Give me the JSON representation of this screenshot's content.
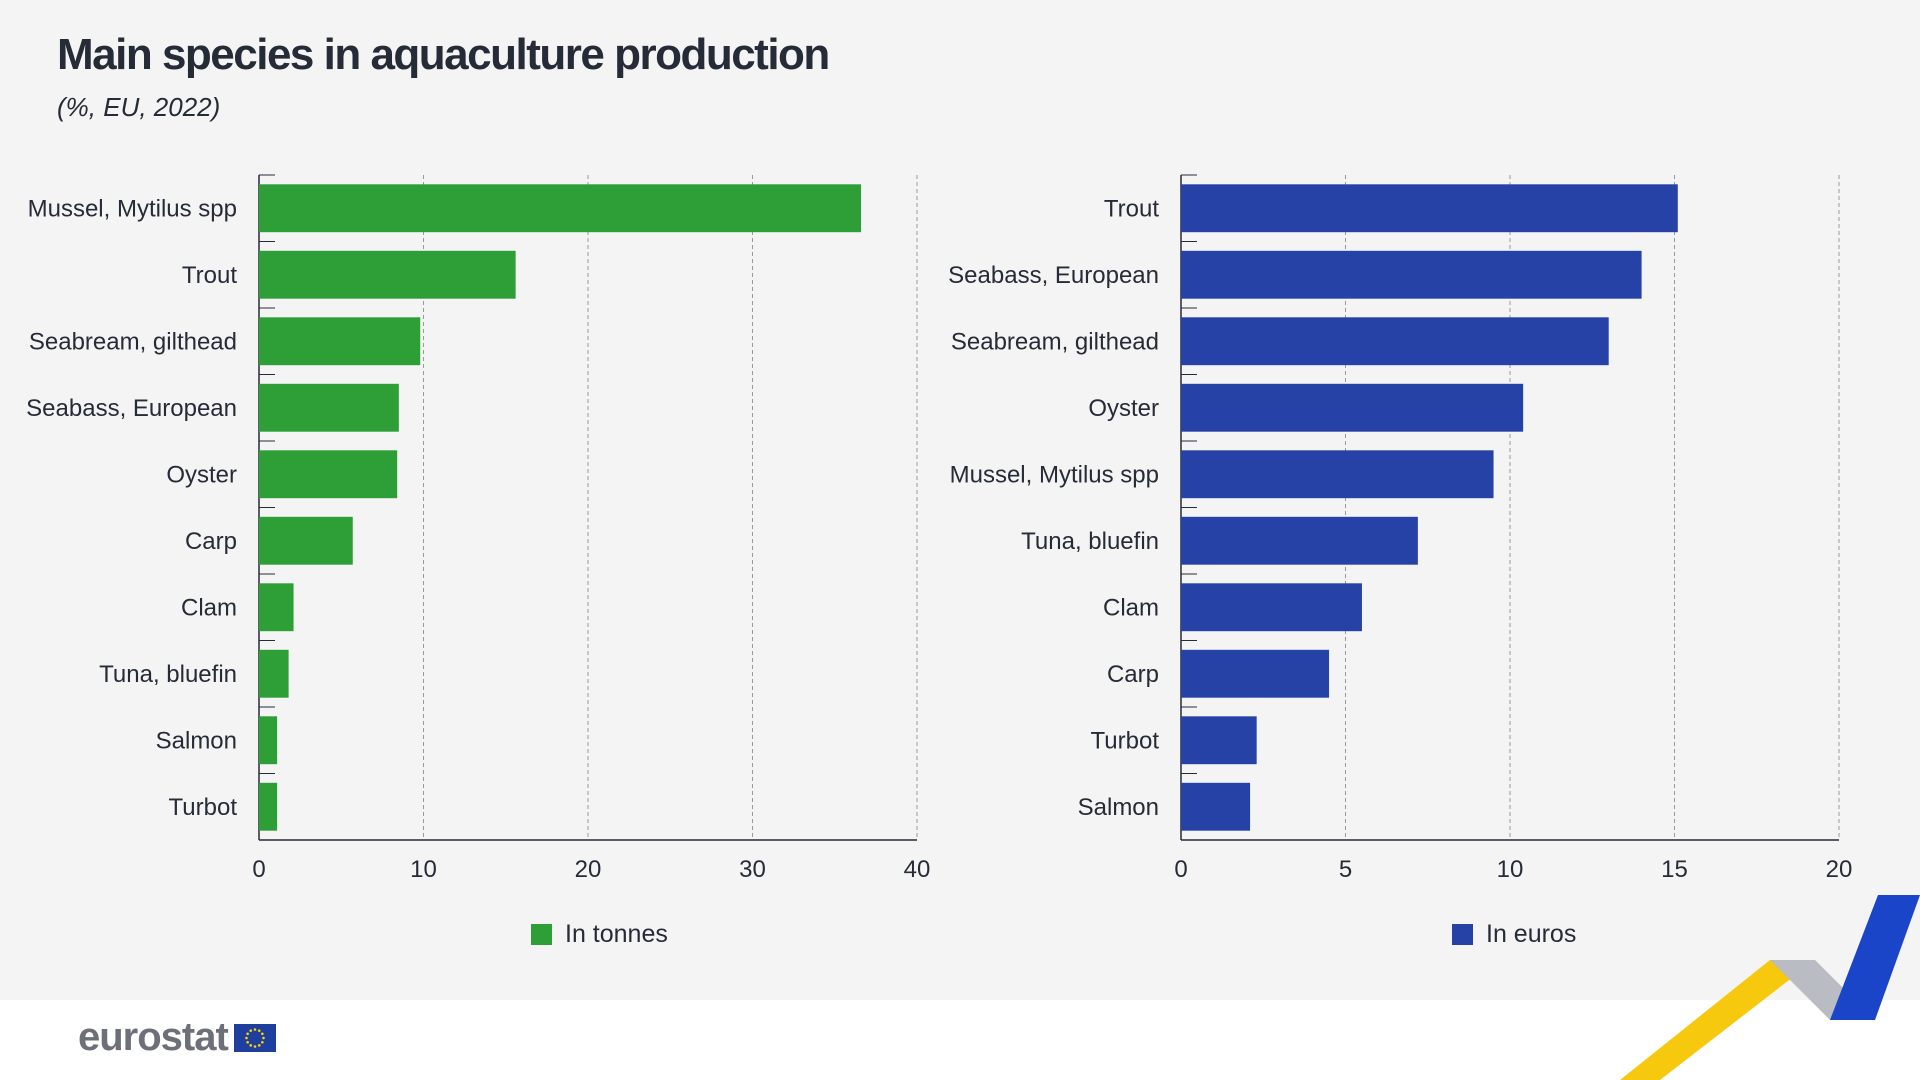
{
  "title": "Main species in aquaculture production",
  "subtitle": "(%, EU, 2022)",
  "logo": {
    "text": "eurostat",
    "flag_icon": "eu-flag-icon"
  },
  "colors": {
    "tonnes": "#2e9e36",
    "euros": "#2742a6",
    "background": "#f4f4f4"
  },
  "chart_data": [
    {
      "type": "bar",
      "orientation": "horizontal",
      "categories": [
        "Mussel, Mytilus spp",
        "Trout",
        "Seabream, gilthead",
        "Seabass, European",
        "Oyster",
        "Carp",
        "Clam",
        "Tuna, bluefin",
        "Salmon",
        "Turbot"
      ],
      "series": [
        {
          "name": "In tonnes",
          "values": [
            36.6,
            15.6,
            9.8,
            8.5,
            8.4,
            5.7,
            2.1,
            1.8,
            1.1,
            1.1
          ]
        }
      ],
      "xlim": [
        0,
        40
      ],
      "xticks": [
        "0",
        "10",
        "20",
        "30",
        "40"
      ],
      "grid": true,
      "legend": "bottom"
    },
    {
      "type": "bar",
      "orientation": "horizontal",
      "categories": [
        "Trout",
        "Seabass, European",
        "Seabream, gilthead",
        "Oyster",
        "Mussel, Mytilus spp",
        "Tuna, bluefin",
        "Clam",
        "Carp",
        "Turbot",
        "Salmon"
      ],
      "series": [
        {
          "name": "In euros",
          "values": [
            15.1,
            14.0,
            13.0,
            10.4,
            9.5,
            7.2,
            5.5,
            4.5,
            2.3,
            2.1
          ]
        }
      ],
      "xlim": [
        0,
        20
      ],
      "xticks": [
        "0",
        "5",
        "10",
        "15",
        "20"
      ],
      "grid": true,
      "legend": "bottom"
    }
  ]
}
